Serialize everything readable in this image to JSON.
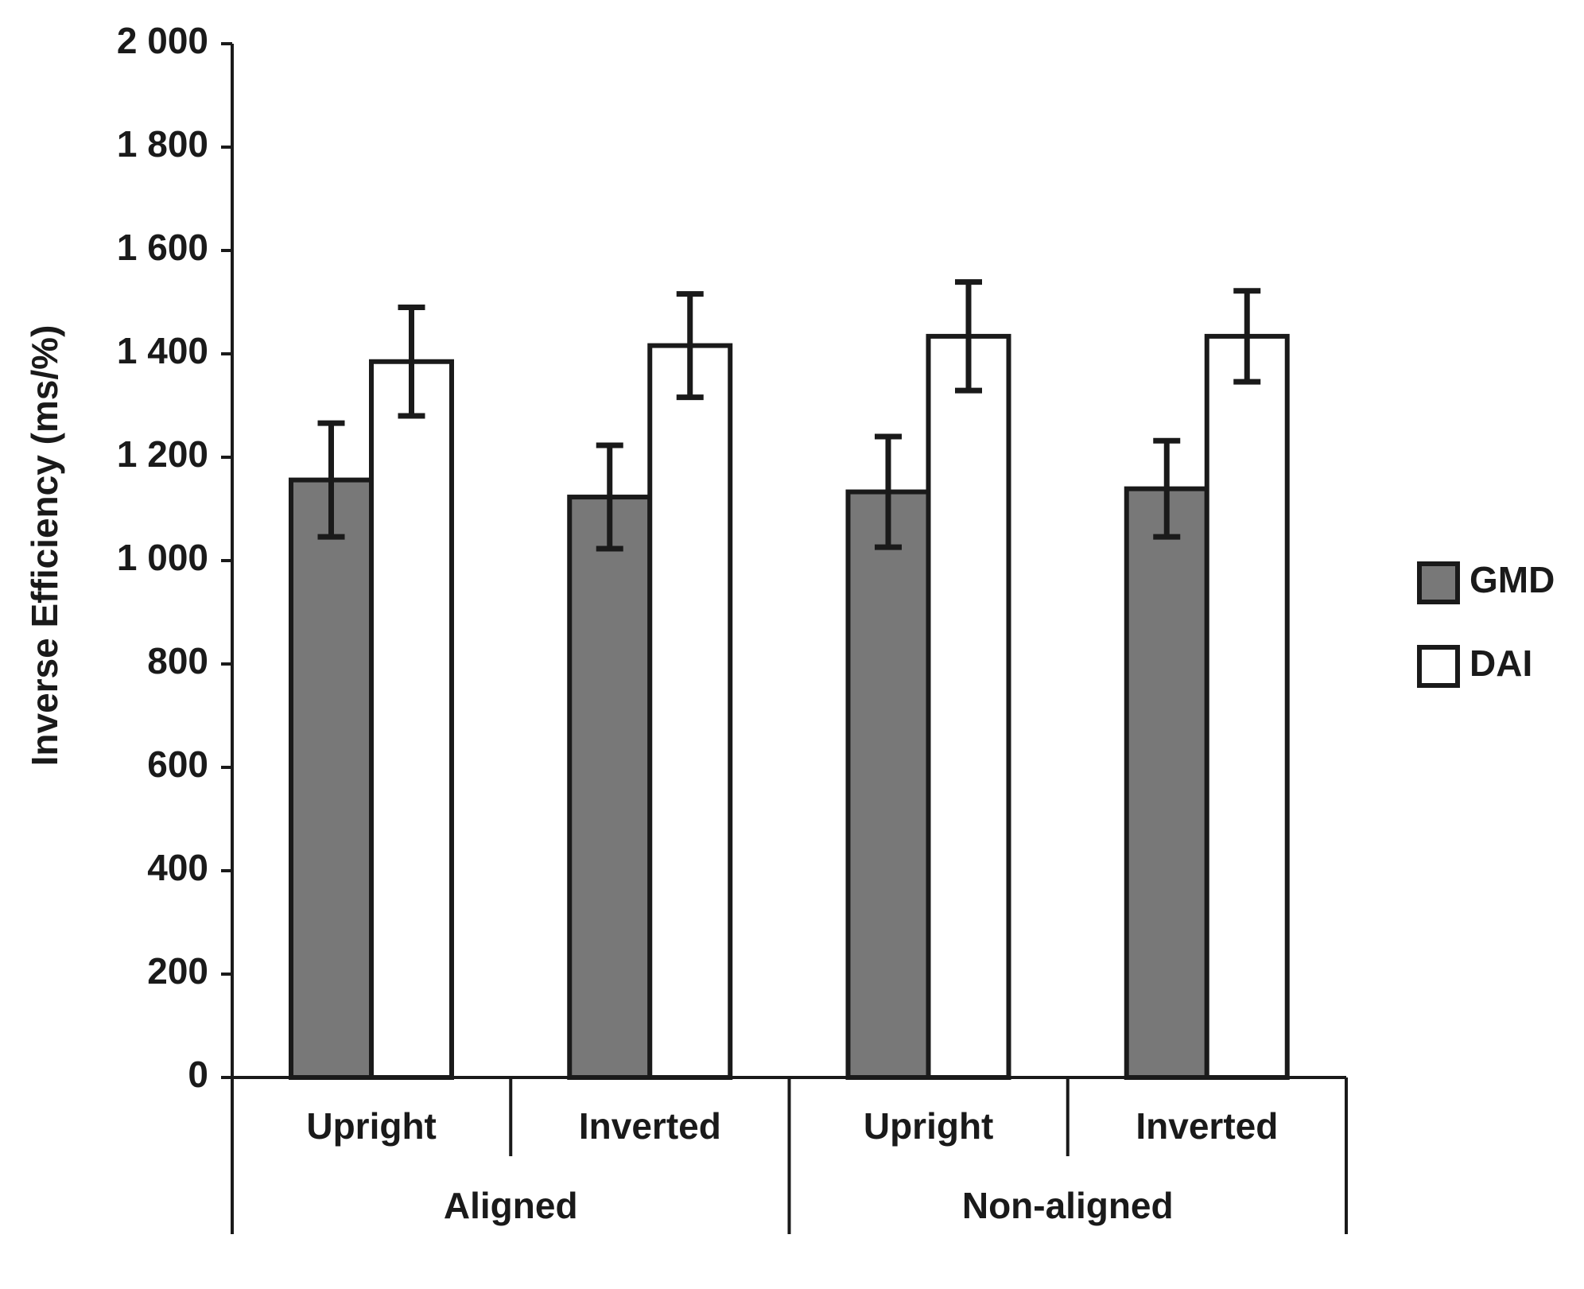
{
  "chart_data": {
    "type": "bar",
    "y_label": "Inverse Efficiency (ms/%)",
    "categories": [
      "Upright",
      "Inverted",
      "Upright",
      "Inverted"
    ],
    "groups": [
      "Aligned",
      "Non-aligned"
    ],
    "series": [
      {
        "name": "GMD",
        "color": "#787878",
        "values": [
          1156,
          1123,
          1133,
          1139
        ],
        "errors": [
          110,
          100,
          107,
          93
        ]
      },
      {
        "name": "DAI",
        "color": "#ffffff",
        "values": [
          1385,
          1416,
          1434,
          1434
        ],
        "errors": [
          105,
          100,
          105,
          88
        ]
      }
    ],
    "ylim": [
      0,
      2000
    ],
    "yticks": [
      0,
      200,
      400,
      600,
      800,
      {
        "value": 1000,
        "label": "1 000"
      },
      {
        "value": 1200,
        "label": "1 200"
      },
      {
        "value": 1400,
        "label": "1 400"
      },
      {
        "value": 1600,
        "label": "1 600"
      },
      {
        "value": 1800,
        "label": "1 800"
      },
      {
        "value": 2000,
        "label": "2 000"
      }
    ],
    "legend": "right"
  }
}
